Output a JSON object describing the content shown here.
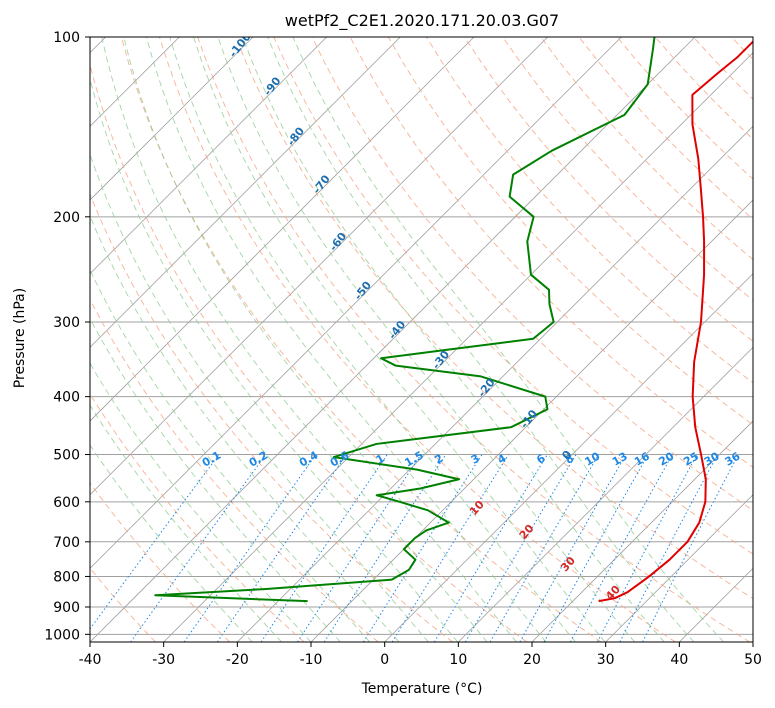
{
  "chart_data": {
    "type": "line",
    "title": "wetPf2_C2E1.2020.171.20.03.G07",
    "xlabel": "Temperature (°C)",
    "ylabel": "Pressure (hPa)",
    "xlim": [
      -40,
      50
    ],
    "ylim": [
      1030,
      100
    ],
    "y_scale": "log",
    "x_ticks": [
      -40,
      -30,
      -20,
      -10,
      0,
      10,
      20,
      30,
      40,
      50
    ],
    "y_ticks": [
      100,
      200,
      300,
      400,
      500,
      600,
      700,
      800,
      900,
      1000
    ],
    "grid": true,
    "series": [
      {
        "name": "",
        "color": "#e00000",
        "values": [
          {
            "p": 880,
            "t": 23.5
          },
          {
            "p": 870,
            "t": 25.3
          },
          {
            "p": 850,
            "t": 26.2
          },
          {
            "p": 800,
            "t": 27.0
          },
          {
            "p": 750,
            "t": 27.5
          },
          {
            "p": 700,
            "t": 27.5
          },
          {
            "p": 650,
            "t": 26.5
          },
          {
            "p": 600,
            "t": 24.5
          },
          {
            "p": 550,
            "t": 21.5
          },
          {
            "p": 500,
            "t": 17.5
          },
          {
            "p": 450,
            "t": 13.0
          },
          {
            "p": 400,
            "t": 8.5
          },
          {
            "p": 350,
            "t": 4.0
          },
          {
            "p": 300,
            "t": -0.5
          },
          {
            "p": 250,
            "t": -6.5
          },
          {
            "p": 220,
            "t": -11.0
          },
          {
            "p": 200,
            "t": -14.5
          },
          {
            "p": 180,
            "t": -18.5
          },
          {
            "p": 160,
            "t": -23.0
          },
          {
            "p": 140,
            "t": -28.5
          },
          {
            "p": 125,
            "t": -32.5
          },
          {
            "p": 115,
            "t": -32.0
          },
          {
            "p": 108,
            "t": -31.5
          },
          {
            "p": 100,
            "t": -31.5
          }
        ]
      },
      {
        "name": "",
        "color": "#008000",
        "values": [
          {
            "p": 880,
            "t": -16.0
          },
          {
            "p": 860,
            "t": -37.5
          },
          {
            "p": 840,
            "t": -23.5
          },
          {
            "p": 810,
            "t": -7.5
          },
          {
            "p": 780,
            "t": -6.5
          },
          {
            "p": 750,
            "t": -7.0
          },
          {
            "p": 720,
            "t": -10.0
          },
          {
            "p": 690,
            "t": -10.0
          },
          {
            "p": 670,
            "t": -9.5
          },
          {
            "p": 650,
            "t": -7.5
          },
          {
            "p": 620,
            "t": -12.0
          },
          {
            "p": 600,
            "t": -17.0
          },
          {
            "p": 585,
            "t": -21.0
          },
          {
            "p": 570,
            "t": -16.0
          },
          {
            "p": 550,
            "t": -12.0
          },
          {
            "p": 530,
            "t": -19.0
          },
          {
            "p": 505,
            "t": -32.0
          },
          {
            "p": 480,
            "t": -28.0
          },
          {
            "p": 450,
            "t": -12.0
          },
          {
            "p": 420,
            "t": -9.5
          },
          {
            "p": 400,
            "t": -11.5
          },
          {
            "p": 370,
            "t": -23.0
          },
          {
            "p": 355,
            "t": -36.0
          },
          {
            "p": 345,
            "t": -39.0
          },
          {
            "p": 335,
            "t": -32.0
          },
          {
            "p": 320,
            "t": -21.0
          },
          {
            "p": 300,
            "t": -20.5
          },
          {
            "p": 280,
            "t": -23.5
          },
          {
            "p": 265,
            "t": -25.5
          },
          {
            "p": 250,
            "t": -30.0
          },
          {
            "p": 220,
            "t": -35.0
          },
          {
            "p": 200,
            "t": -37.5
          },
          {
            "p": 185,
            "t": -43.5
          },
          {
            "p": 170,
            "t": -46.0
          },
          {
            "p": 155,
            "t": -44.0
          },
          {
            "p": 135,
            "t": -39.0
          },
          {
            "p": 120,
            "t": -40.0
          },
          {
            "p": 105,
            "t": -44.0
          },
          {
            "p": 100,
            "t": -45.5
          }
        ]
      }
    ],
    "dry_adiabat_labels": [
      -100,
      -90,
      -80,
      -70,
      -60,
      -50,
      -40,
      -30,
      -20,
      -10,
      0
    ],
    "moist_adiabat_labels": [
      10,
      20,
      30,
      40
    ],
    "mixing_ratio_labels": [
      "0.1",
      "0.2",
      "0.4",
      "0.6",
      "1",
      "1.5",
      "2",
      "3",
      "4",
      "6",
      "8",
      "10",
      "13",
      "16",
      "20",
      "25",
      "30",
      "36"
    ],
    "colors": {
      "temperature": "#e00000",
      "dewpoint": "#008000",
      "isotherm": "#a0a0a0",
      "dry_adiabat": "#f4a582",
      "moist_adiabat": "#8fc98f",
      "mixing_ratio": "#1e88e5",
      "dry_label": "#1f6fb0",
      "moist_label": "#d62728"
    }
  }
}
